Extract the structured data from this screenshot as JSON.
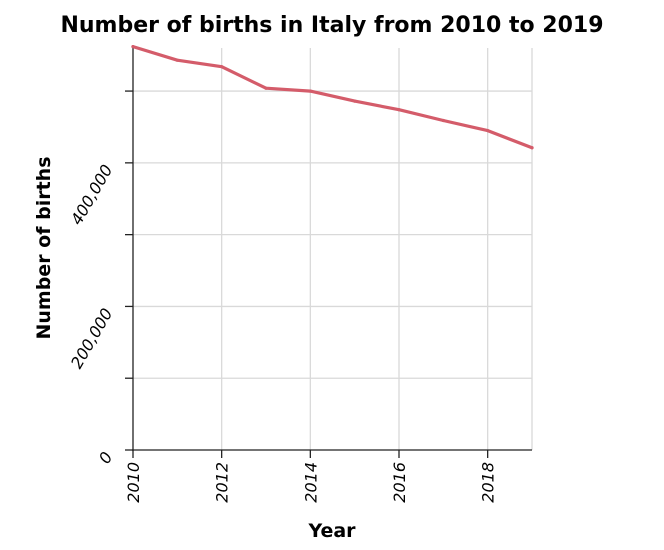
{
  "chart_data": {
    "type": "line",
    "title": "Number of births in Italy from 2010 to 2019",
    "xlabel": "Year",
    "ylabel": "Number of births",
    "x": [
      2010,
      2011,
      2012,
      2013,
      2014,
      2015,
      2016,
      2017,
      2018,
      2019
    ],
    "series": [
      {
        "color": "#d45c6a",
        "values": [
          562000,
          543000,
          534000,
          504000,
          500000,
          486000,
          474000,
          459000,
          445000,
          421000
        ]
      }
    ],
    "xlim": [
      2010,
      2019
    ],
    "ylim": [
      0,
      560000
    ],
    "xticks": [
      2010,
      2012,
      2014,
      2016,
      2018
    ],
    "xtick_labels": [
      "2010",
      "2012",
      "2014",
      "2016",
      "2018"
    ],
    "yticks": [
      0,
      100000,
      200000,
      300000,
      400000,
      500000
    ],
    "ytick_labels": [
      "0",
      "",
      "200,000",
      "",
      "400,000",
      ""
    ],
    "grid": true,
    "line_color": "#d45c6a"
  }
}
